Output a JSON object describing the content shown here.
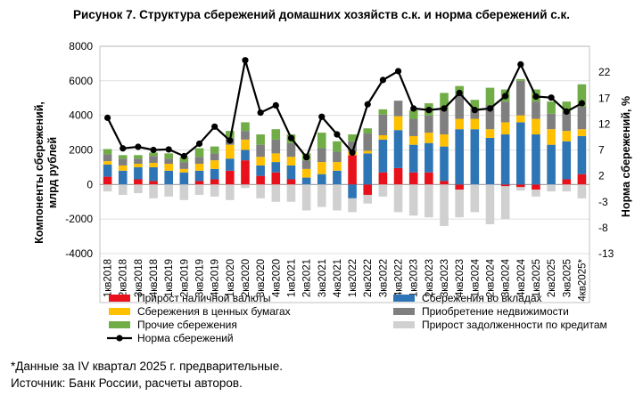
{
  "title": "Рисунок 7. Структура сбережений домашних хозяйств с.к. и норма сбережений с.к.",
  "footnote": "*Данные за IV квартал 2025 г. предварительные.",
  "source": "Источник: Банк России, расчеты авторов.",
  "colors": {
    "cash": "#e8101a",
    "deposits": "#2e75b6",
    "securities": "#ffc000",
    "real_estate": "#7f7f7f",
    "other": "#70ad47",
    "credit": "#d0d0d0",
    "rate": "#000000",
    "grid": "#d9d9d9"
  },
  "chart_data": {
    "type": "bar",
    "stacked": true,
    "title": "Структура сбережений домашних хозяйств с.к. и норма сбережений с.к.",
    "ylabel": "Компоненты сбережений, млрд рублей",
    "y2label": "Норма сбережений, %",
    "ylim": [
      -4000,
      8000
    ],
    "yticks": [
      -4000,
      -2000,
      0,
      2000,
      4000,
      6000,
      8000
    ],
    "y2lim": [
      -13,
      27
    ],
    "y2ticks": [
      -13,
      -8,
      -3,
      2,
      7,
      12,
      17,
      22
    ],
    "grid": true,
    "legend_position": "bottom",
    "categories": [
      "1кв2018",
      "2кв2018",
      "3кв2018",
      "4кв2018",
      "1кв2019",
      "2кв2019",
      "3кв2019",
      "4кв2019",
      "1кв2020",
      "2кв2020",
      "3кв2020",
      "4кв2020",
      "1кв2021",
      "2кв2021",
      "3кв2021",
      "4кв2021",
      "1кв2022",
      "2кв2022",
      "3кв2022",
      "4кв2022",
      "1кв2023",
      "2кв2023",
      "3кв2023",
      "4кв2023",
      "1кв2024",
      "2кв2024",
      "3кв2024",
      "4кв2024",
      "1кв2025",
      "2кв2025",
      "3кв2025",
      "4кв2025*"
    ],
    "series": [
      {
        "key": "cash",
        "name": "Прирост наличной валюты",
        "values": [
          450,
          0,
          300,
          200,
          0,
          0,
          200,
          300,
          800,
          1400,
          500,
          700,
          300,
          0,
          0,
          0,
          1700,
          -600,
          700,
          950,
          700,
          700,
          200,
          -300,
          0,
          0,
          -100,
          -150,
          -300,
          0,
          300,
          600
        ]
      },
      {
        "key": "deposits",
        "name": "Сбережения во вкладах",
        "values": [
          700,
          800,
          700,
          800,
          800,
          700,
          600,
          600,
          700,
          600,
          600,
          600,
          800,
          400,
          600,
          800,
          -800,
          1800,
          1900,
          2200,
          1600,
          1700,
          2000,
          3200,
          3200,
          2700,
          2900,
          3600,
          2900,
          2300,
          2200,
          2200
        ]
      },
      {
        "key": "securities",
        "name": "Сбережения в ценных бумагах",
        "values": [
          200,
          300,
          200,
          250,
          400,
          200,
          400,
          500,
          800,
          600,
          500,
          500,
          500,
          500,
          700,
          500,
          200,
          150,
          250,
          800,
          500,
          600,
          700,
          600,
          600,
          500,
          700,
          400,
          900,
          900,
          600,
          400
        ]
      },
      {
        "key": "real_estate",
        "name": "Приобретение недвижимости",
        "values": [
          400,
          400,
          300,
          400,
          300,
          400,
          400,
          400,
          400,
          500,
          700,
          800,
          800,
          500,
          800,
          600,
          600,
          1000,
          1200,
          900,
          1000,
          1000,
          1400,
          1400,
          600,
          1400,
          1200,
          2000,
          1000,
          900,
          1100,
          1300
        ]
      },
      {
        "key": "other",
        "name": "Прочие сбережения",
        "values": [
          300,
          200,
          200,
          200,
          300,
          300,
          500,
          400,
          400,
          500,
          600,
          600,
          500,
          400,
          900,
          600,
          400,
          300,
          300,
          0,
          500,
          700,
          1000,
          500,
          500,
          1000,
          700,
          100,
          700,
          700,
          600,
          1300
        ]
      },
      {
        "key": "credit",
        "name": "Прирост задолженности по кредитам",
        "values": [
          -400,
          -600,
          -500,
          -800,
          -700,
          -900,
          -600,
          -700,
          -900,
          -200,
          -800,
          -1000,
          -1000,
          -1500,
          -1300,
          -1500,
          -800,
          -500,
          -700,
          -1600,
          -1800,
          -1900,
          -2400,
          -1600,
          -1600,
          -2300,
          -1900,
          -200,
          -400,
          -400,
          -400,
          -800
        ]
      }
    ],
    "line": {
      "key": "rate",
      "name": "Норма сбережений",
      "values": [
        13.2,
        7.3,
        7.6,
        7.0,
        7.1,
        5.8,
        8.2,
        11.5,
        8.8,
        24.3,
        14.2,
        15.6,
        9.3,
        5.6,
        13.4,
        10.0,
        6.5,
        15.8,
        20.5,
        22.2,
        15.0,
        14.7,
        15.0,
        18.0,
        14.7,
        15.0,
        17.4,
        23.5,
        17.3,
        17.1,
        14.4,
        16.0
      ]
    }
  }
}
